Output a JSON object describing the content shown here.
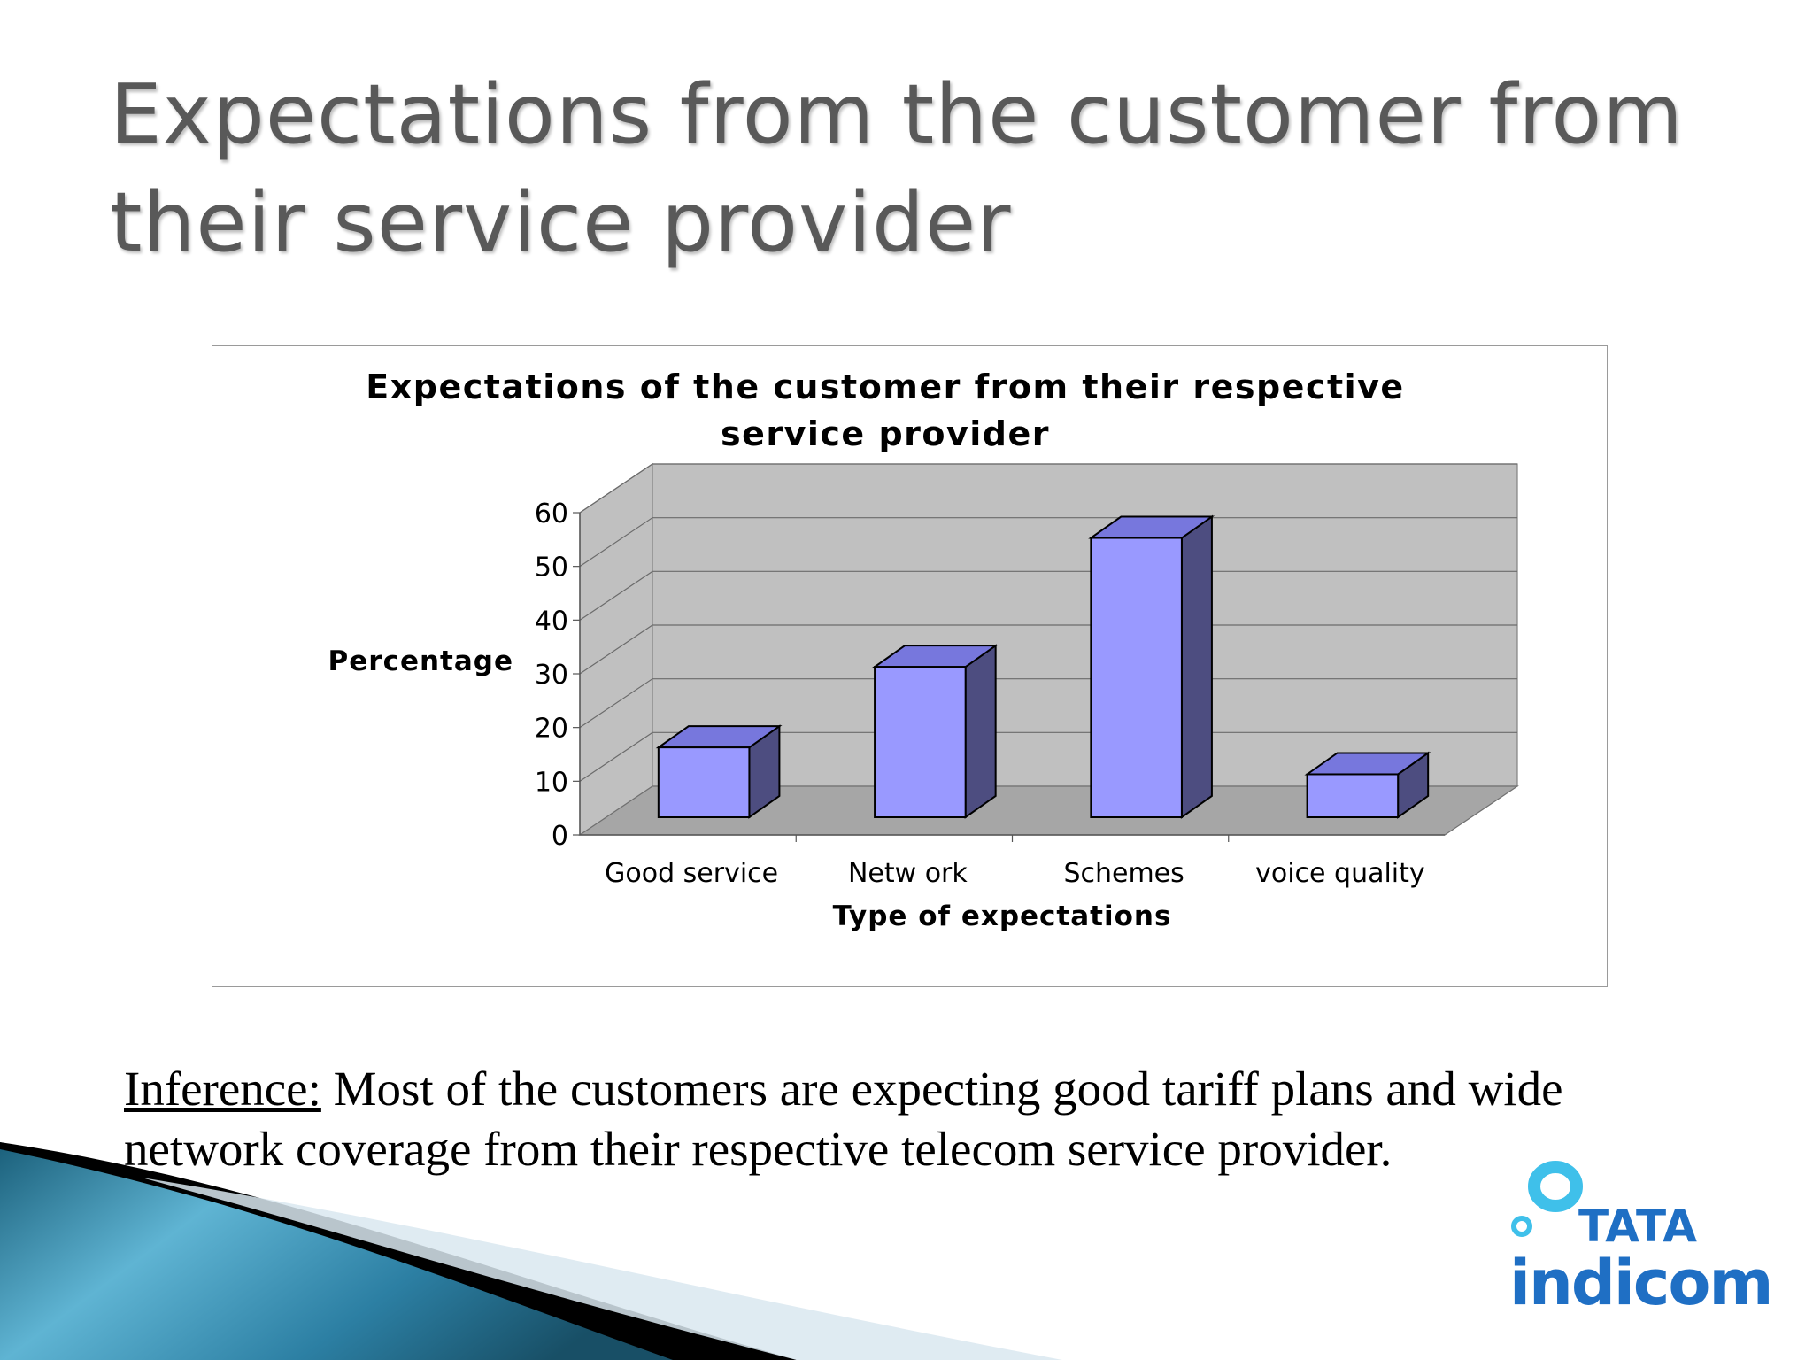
{
  "slide": {
    "title": "Expectations from the customer from their service provider",
    "inference_label": "Inference:",
    "inference_text": " Most of the customers are expecting good tariff plans and wide network coverage from their respective telecom service provider."
  },
  "logo": {
    "brand_top": "TATA",
    "brand_bottom": "indicom",
    "color": "#1f6fc4",
    "accent": "#3fc0ea"
  },
  "chart_data": {
    "type": "bar",
    "title": "Expectations of the customer from their respective service provider",
    "title_lines": [
      "Expectations of the customer from their respective",
      "service provider"
    ],
    "xlabel": "Type of expectations",
    "ylabel": "Percentage",
    "categories": [
      "Good service",
      "Netw ork",
      "Schemes",
      "voice quality"
    ],
    "values": [
      13,
      28,
      52,
      8
    ],
    "ylim": [
      0,
      60
    ],
    "yticks": [
      0,
      10,
      20,
      30,
      40,
      50,
      60
    ],
    "grid": true,
    "three_d": true,
    "colors": {
      "bar_front": "#9999ff",
      "bar_top": "#7777dd",
      "bar_side": "#4d4d80",
      "wall": "#c0c0c0",
      "floor": "#a6a6a6"
    }
  }
}
